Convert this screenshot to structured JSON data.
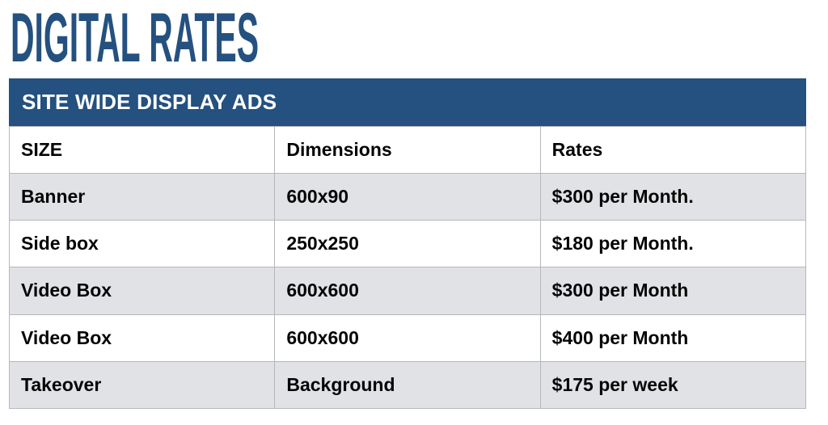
{
  "page": {
    "title": "DIGITAL RATES"
  },
  "rate_card": {
    "section_header": "SITE WIDE DISPLAY ADS",
    "columns": [
      "SIZE",
      "Dimensions",
      "Rates"
    ],
    "rows": [
      [
        "Banner",
        "600x90",
        "$300 per Month."
      ],
      [
        "Side box",
        "250x250",
        "$180 per Month."
      ],
      [
        "Video Box",
        "600x600",
        "$300 per Month"
      ],
      [
        "Video Box",
        "600x600",
        "$400 per Month"
      ],
      [
        "Takeover",
        "Background",
        "$175 per week"
      ]
    ],
    "colors": {
      "accent_blue": "#24517f",
      "alt_row_gray": "#e1e2e6",
      "border_gray": "#b5b7bb"
    }
  }
}
